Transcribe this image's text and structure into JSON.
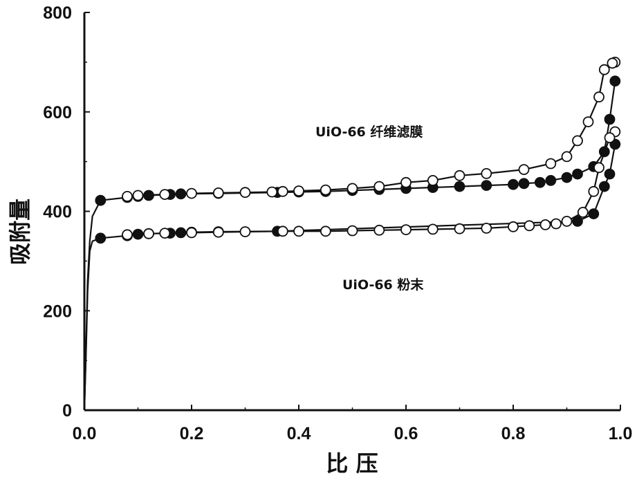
{
  "chart_data": {
    "type": "scatter",
    "title": "",
    "xlabel": "比 压",
    "ylabel": "吸附量",
    "xlim": [
      0.0,
      1.0
    ],
    "ylim": [
      0,
      800
    ],
    "xticks": [
      "0.0",
      "0.2",
      "0.4",
      "0.6",
      "0.8",
      "1.0"
    ],
    "yticks": [
      "0",
      "200",
      "400",
      "600",
      "800"
    ],
    "grid": false,
    "legend": "none",
    "annotations": [
      "UiO-66 纤维滤膜",
      "UiO-66 粉末"
    ],
    "series": [
      {
        "group": "UiO-66 纤维滤膜",
        "branch": "adsorption",
        "marker": "filled",
        "x": [
          0.0,
          0.003,
          0.006,
          0.01,
          0.015,
          0.03,
          0.08,
          0.1,
          0.12,
          0.16,
          0.18,
          0.25,
          0.36,
          0.4,
          0.45,
          0.5,
          0.55,
          0.6,
          0.65,
          0.7,
          0.75,
          0.8,
          0.82,
          0.85,
          0.87,
          0.9,
          0.92,
          0.95,
          0.97,
          0.98,
          0.99
        ],
        "y": [
          0,
          120,
          260,
          340,
          390,
          422,
          428,
          430,
          432,
          434,
          435,
          436,
          438,
          439,
          440,
          442,
          444,
          446,
          448,
          450,
          452,
          454,
          456,
          458,
          462,
          468,
          475,
          490,
          520,
          585,
          662
        ]
      },
      {
        "group": "UiO-66 纤维滤膜",
        "branch": "desorption",
        "marker": "open",
        "x": [
          0.99,
          0.985,
          0.97,
          0.96,
          0.94,
          0.92,
          0.9,
          0.87,
          0.82,
          0.75,
          0.7,
          0.65,
          0.6,
          0.55,
          0.5,
          0.45,
          0.4,
          0.37,
          0.35,
          0.3,
          0.25,
          0.2,
          0.15,
          0.1,
          0.08
        ],
        "y": [
          700,
          698,
          685,
          630,
          580,
          542,
          510,
          496,
          484,
          476,
          472,
          462,
          458,
          450,
          446,
          443,
          441,
          440,
          439,
          438,
          437,
          436,
          434,
          432,
          430
        ]
      },
      {
        "group": "UiO-66 粉末",
        "branch": "adsorption",
        "marker": "filled",
        "x": [
          0.0,
          0.003,
          0.006,
          0.01,
          0.015,
          0.03,
          0.08,
          0.1,
          0.12,
          0.16,
          0.18,
          0.2,
          0.25,
          0.36,
          0.92,
          0.95,
          0.97,
          0.98,
          0.99
        ],
        "y": [
          0,
          110,
          240,
          320,
          340,
          346,
          351,
          354,
          355,
          356,
          357,
          358,
          359,
          360,
          380,
          395,
          450,
          475,
          535
        ]
      },
      {
        "group": "UiO-66 粉末",
        "branch": "desorption",
        "marker": "open",
        "x": [
          0.99,
          0.98,
          0.96,
          0.95,
          0.93,
          0.9,
          0.88,
          0.86,
          0.83,
          0.8,
          0.75,
          0.7,
          0.65,
          0.6,
          0.55,
          0.5,
          0.45,
          0.4,
          0.37,
          0.3,
          0.25,
          0.2,
          0.15,
          0.12,
          0.08
        ],
        "y": [
          560,
          548,
          488,
          440,
          398,
          380,
          375,
          373,
          371,
          369,
          366,
          365,
          364,
          363,
          362,
          361,
          360,
          360,
          360,
          359,
          358,
          357,
          356,
          355,
          353
        ]
      }
    ]
  }
}
